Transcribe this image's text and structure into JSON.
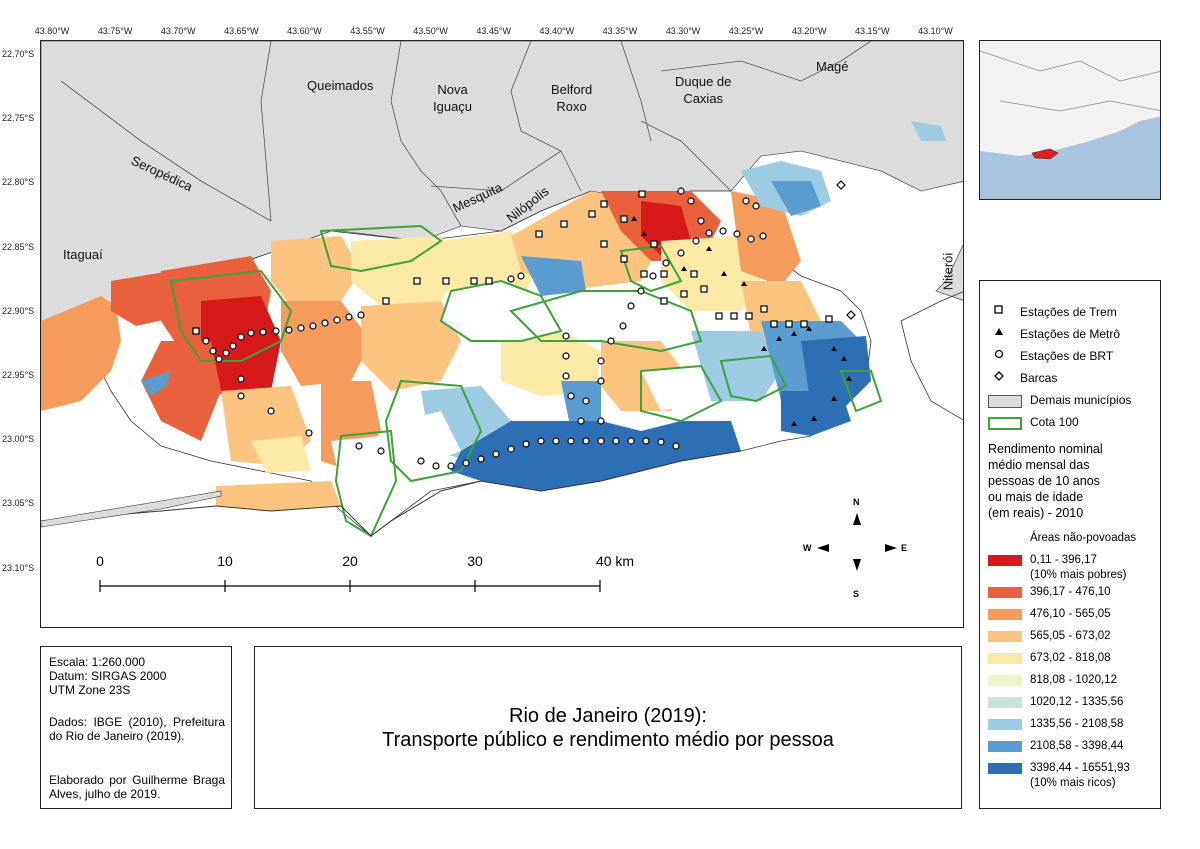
{
  "axes": {
    "top_labels": [
      "43.80°W",
      "43.75°W",
      "43.70°W",
      "43.65°W",
      "43.60°W",
      "43.55°W",
      "43.50°W",
      "43.45°W",
      "43.40°W",
      "43.35°W",
      "43.30°W",
      "43.25°W",
      "43.20°W",
      "43.15°W",
      "43.10°W"
    ],
    "left_labels": [
      "22.70°S",
      "22.75°S",
      "22.80°S",
      "22.85°S",
      "22.90°S",
      "22.95°S",
      "23.00°S",
      "23.05°S",
      "23.10°S"
    ]
  },
  "municipalities": {
    "queimados": "Queimados",
    "nova_iguacu_1": "Nova",
    "nova_iguacu_2": "Iguaçu",
    "belford_roxo_1": "Belford",
    "belford_roxo_2": "Roxo",
    "duque_1": "Duque de",
    "duque_2": "Caxias",
    "mage": "Magé",
    "seropedica": "Seropédica",
    "mesquita": "Mesquita",
    "nilopolis": "Nilópolis",
    "itaguai": "Itaguaí",
    "niteroi": "Niterói"
  },
  "scale_bar": {
    "ticks": [
      "0",
      "10",
      "20",
      "30"
    ],
    "end_label": "40 km"
  },
  "compass": {
    "n": "N",
    "s": "S",
    "e": "E",
    "w": "W"
  },
  "legend": {
    "symbols": [
      {
        "label": "Estações de Trem",
        "icon": "square-icon"
      },
      {
        "label": "Estações de Metrô",
        "icon": "triangle-icon"
      },
      {
        "label": "Estações de BRT",
        "icon": "circle-icon"
      },
      {
        "label": "Barcas",
        "icon": "diamond-icon"
      }
    ],
    "demais_label": "Demais municípios",
    "cota_label": "Cota 100",
    "heading": [
      "Rendimento nominal",
      "médio mensal das",
      "pessoas de 10 anos",
      "ou mais de idade",
      "(em reais) - 2010"
    ],
    "unpopulated": "Áreas não-povoadas",
    "classes": [
      {
        "range": "0,11 - 396,17",
        "note": "(10% mais pobres)",
        "color": "#d7191c"
      },
      {
        "range": "396,17 - 476,10",
        "note": "",
        "color": "#e8603c"
      },
      {
        "range": "476,10 - 565,05",
        "note": "",
        "color": "#f59b5c"
      },
      {
        "range": "565,05 - 673,02",
        "note": "",
        "color": "#fcc47f"
      },
      {
        "range": "673,02 - 818,08",
        "note": "",
        "color": "#fde9a6"
      },
      {
        "range": "818,08 - 1020,12",
        "note": "",
        "color": "#eef5c8"
      },
      {
        "range": "1020,12 - 1335,56",
        "note": "",
        "color": "#c6e5d6"
      },
      {
        "range": "1335,56 - 2108,58",
        "note": "",
        "color": "#9ccbe3"
      },
      {
        "range": "2108,58 - 3398,44",
        "note": "",
        "color": "#5a9ccf"
      },
      {
        "range": "3398,44 - 16551,93",
        "note": "(10% mais ricos)",
        "color": "#2c6fb4"
      }
    ]
  },
  "colors": {
    "municipalities_fill": "#dddddd",
    "cota_line": "#3aa33a",
    "ocean_inset": "#a8c4e0",
    "rio_inset": "#e02020"
  },
  "info": {
    "escala": "Escala: 1:260.000",
    "datum": "Datum: SIRGAS 2000",
    "utm": "UTM Zone 23S",
    "dados": "Dados: IBGE (2010), Prefeitura do Rio de Janeiro (2019).",
    "elaborado": "Elaborado por Guilherme Braga Alves, julho de 2019."
  },
  "title": {
    "line1": "Rio de Janeiro (2019):",
    "line2": "Transporte público e rendimento médio por pessoa"
  }
}
